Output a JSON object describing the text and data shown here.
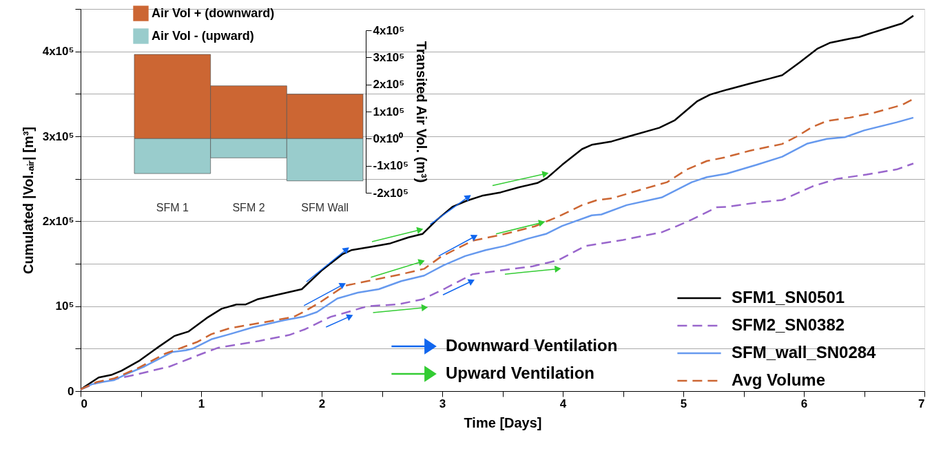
{
  "chart_data": [
    {
      "type": "line",
      "xlabel": "Time [Days]",
      "ylabel": "Cumulated |Vol.ₐᵢᵣ| [m³]",
      "xlim": [
        0,
        7
      ],
      "ylim": [
        0,
        450000
      ],
      "xticks": [
        0,
        {
          "value": 0.5,
          "label": null
        },
        1,
        {
          "value": 1.5,
          "label": null
        },
        2,
        {
          "value": 2.5,
          "label": null
        },
        3,
        {
          "value": 3.5,
          "label": null
        },
        4,
        {
          "value": 4.5,
          "label": null
        },
        5,
        {
          "value": 5.5,
          "label": null
        },
        6,
        {
          "value": 6.5,
          "label": null
        },
        7
      ],
      "yticks": [
        0,
        {
          "value": 50000,
          "label": null
        },
        {
          "value": 100000,
          "label": "10⁵"
        },
        {
          "value": 150000,
          "label": null
        },
        {
          "value": 200000,
          "label": "2x10⁵"
        },
        {
          "value": 250000,
          "label": null
        },
        {
          "value": 300000,
          "label": "3x10⁵"
        },
        {
          "value": 350000,
          "label": null
        },
        {
          "value": 400000,
          "label": "4x10⁵"
        },
        {
          "value": 450000,
          "label": null
        }
      ],
      "grid": "y",
      "legend": "bottom right",
      "series": [
        {
          "name": "SFM1_SN0501",
          "color": "#000000",
          "line_style": "solid",
          "x": [
            0,
            0.15,
            0.254,
            0.34,
            0.49,
            0.646,
            0.78,
            0.893,
            1.046,
            1.17,
            1.293,
            1.37,
            1.465,
            1.71,
            1.835,
            2.0,
            2.17,
            2.246,
            2.417,
            2.57,
            2.72,
            2.836,
            2.95,
            3.084,
            3.2,
            3.33,
            3.484,
            3.636,
            3.789,
            3.87,
            3.995,
            4.16,
            4.24,
            4.405,
            4.55,
            4.8,
            4.93,
            5.117,
            5.22,
            5.364,
            5.55,
            5.716,
            5.82,
            5.964,
            6.11,
            6.214,
            6.38,
            6.46,
            6.545,
            6.815,
            6.908
          ],
          "values": [
            2000,
            16000,
            19000,
            24000,
            36000,
            52000,
            65000,
            70000,
            86000,
            97000,
            102000,
            102000,
            108000,
            116000,
            120000,
            142000,
            161000,
            166000,
            170000,
            174000,
            181000,
            185000,
            201000,
            217000,
            224000,
            230000,
            234000,
            240000,
            245000,
            251000,
            266500,
            285000,
            290000,
            294000,
            300000,
            310000,
            319000,
            341500,
            349000,
            355000,
            362000,
            368000,
            372000,
            387000,
            403000,
            410000,
            415000,
            417000,
            421000,
            433000,
            442000
          ]
        },
        {
          "name": "SFM2_SN0382",
          "color": "#9966cc",
          "line_style": "dashed",
          "x": [
            0,
            0.15,
            0.32,
            0.474,
            0.74,
            1.007,
            1.14,
            1.48,
            1.73,
            1.865,
            2.075,
            2.19,
            2.38,
            2.626,
            2.836,
            3.026,
            3.25,
            3.48,
            3.75,
            3.96,
            4.19,
            4.5,
            4.82,
            4.95,
            5.07,
            5.28,
            5.364,
            5.61,
            5.82,
            6.07,
            6.276,
            6.52,
            6.77,
            6.908
          ],
          "values": [
            2000,
            10500,
            15000,
            20000,
            29000,
            44000,
            51000,
            59000,
            66000,
            73000,
            87500,
            92000,
            100000,
            102000,
            108000,
            121000,
            137600,
            142000,
            147000,
            154000,
            171000,
            178000,
            187000,
            194500,
            202000,
            216500,
            217000,
            222000,
            225000,
            241000,
            250000,
            255000,
            261000,
            268000
          ]
        },
        {
          "name": "SFM_wall_SN0284",
          "color": "#6699ee",
          "line_style": "solid",
          "x": [
            0,
            0.093,
            0.19,
            0.28,
            0.38,
            0.53,
            0.76,
            0.874,
            0.93,
            1.084,
            1.236,
            1.427,
            1.69,
            1.846,
            1.96,
            2.13,
            2.3,
            2.474,
            2.66,
            2.85,
            3.01,
            3.19,
            3.36,
            3.52,
            3.71,
            3.86,
            3.995,
            4.24,
            4.32,
            4.53,
            4.82,
            5.07,
            5.196,
            5.36,
            5.61,
            5.82,
            6.03,
            6.19,
            6.34,
            6.5,
            6.77,
            6.908
          ],
          "values": [
            2000,
            8000,
            11000,
            13000,
            20000,
            29000,
            46000,
            48000,
            50000,
            61000,
            67000,
            75000,
            83500,
            87500,
            93000,
            109000,
            116000,
            120000,
            129500,
            136000,
            148000,
            159000,
            166000,
            171000,
            179500,
            185000,
            194500,
            207000,
            208000,
            219000,
            228000,
            246000,
            252000,
            256000,
            266500,
            276000,
            291500,
            297000,
            299000,
            307000,
            316500,
            322000
          ]
        },
        {
          "name": "Avg Volume",
          "color": "#cc6633",
          "line_style": "dashed",
          "x": [
            0,
            0.13,
            0.28,
            0.49,
            0.7,
            0.817,
            0.97,
            1.084,
            1.236,
            1.52,
            1.77,
            1.846,
            1.98,
            2.19,
            2.38,
            2.66,
            2.85,
            2.987,
            3.25,
            3.52,
            3.767,
            3.955,
            4.16,
            4.286,
            4.41,
            4.62,
            4.865,
            5.03,
            5.196,
            5.34,
            5.55,
            5.82,
            5.944,
            6.07,
            6.19,
            6.38,
            6.587,
            6.815,
            6.908
          ],
          "values": [
            2000,
            10500,
            15000,
            28000,
            44000,
            50000,
            58000,
            67000,
            74000,
            81000,
            87500,
            93000,
            104000,
            124000,
            129500,
            137600,
            144000,
            158000,
            177000,
            185000,
            194000,
            205000,
            219000,
            225000,
            227000,
            236000,
            246000,
            261000,
            271000,
            275000,
            283000,
            291000,
            300000,
            311000,
            318000,
            322000,
            328000,
            337000,
            344000
          ]
        },
        {
          "name": "Downward Ventilation",
          "color": "#1166ee",
          "marker": "triangle",
          "x": [
            1.874,
            2.207,
            null,
            1.853,
            2.177,
            null,
            2.036,
            2.236,
            null,
            2.9,
            3.217,
            null,
            2.97,
            3.27,
            null,
            3.006,
            3.245
          ],
          "values": [
            128700,
            167000,
            null,
            100600,
            125400,
            null,
            75400,
            88100,
            null,
            196300,
            228700,
            null,
            159000,
            182000,
            null,
            113300,
            129500
          ]
        },
        {
          "name": "Upward Ventilation",
          "color": "#33cc33",
          "marker": "triangle",
          "x": [
            2.417,
            2.817,
            null,
            2.408,
            2.83,
            null,
            2.426,
            2.855,
            null,
            3.417,
            3.857,
            null,
            3.446,
            3.827,
            null,
            3.52,
            3.96
          ],
          "values": [
            176000,
            190000,
            null,
            134000,
            152500,
            null,
            92500,
            98400,
            null,
            242000,
            256000,
            null,
            185000,
            198500,
            null,
            137600,
            144000
          ]
        }
      ]
    },
    {
      "type": "bar",
      "stacked": true,
      "legend": "top left",
      "y2label": "Transited Air Vol. (m³)",
      "categories": [
        "SFM 1",
        "SFM 2",
        "SFM Wall"
      ],
      "y2lim": [
        -200000,
        400000
      ],
      "y2ticks": [
        {
          "value": 400000,
          "label": "4x10⁵"
        },
        {
          "value": 300000,
          "label": "3x10⁵"
        },
        {
          "value": 200000,
          "label": "2x10⁵"
        },
        {
          "value": 100000,
          "label": "1x10⁵"
        },
        {
          "value": 0,
          "label": "0x10⁰"
        },
        {
          "value": -100000,
          "label": "-1x10⁵"
        },
        {
          "value": -200000,
          "label": "-2x10⁵"
        }
      ],
      "series": [
        {
          "name": "Air Vol + (downward)",
          "color": "#cc6633",
          "axis": "y2",
          "values": [
            311000,
            195000,
            164000
          ]
        },
        {
          "name": "Air Vol - (upward)",
          "color": "#99cccc",
          "axis": "y2",
          "values": [
            -129000,
            -71000,
            -156000
          ]
        }
      ]
    }
  ]
}
